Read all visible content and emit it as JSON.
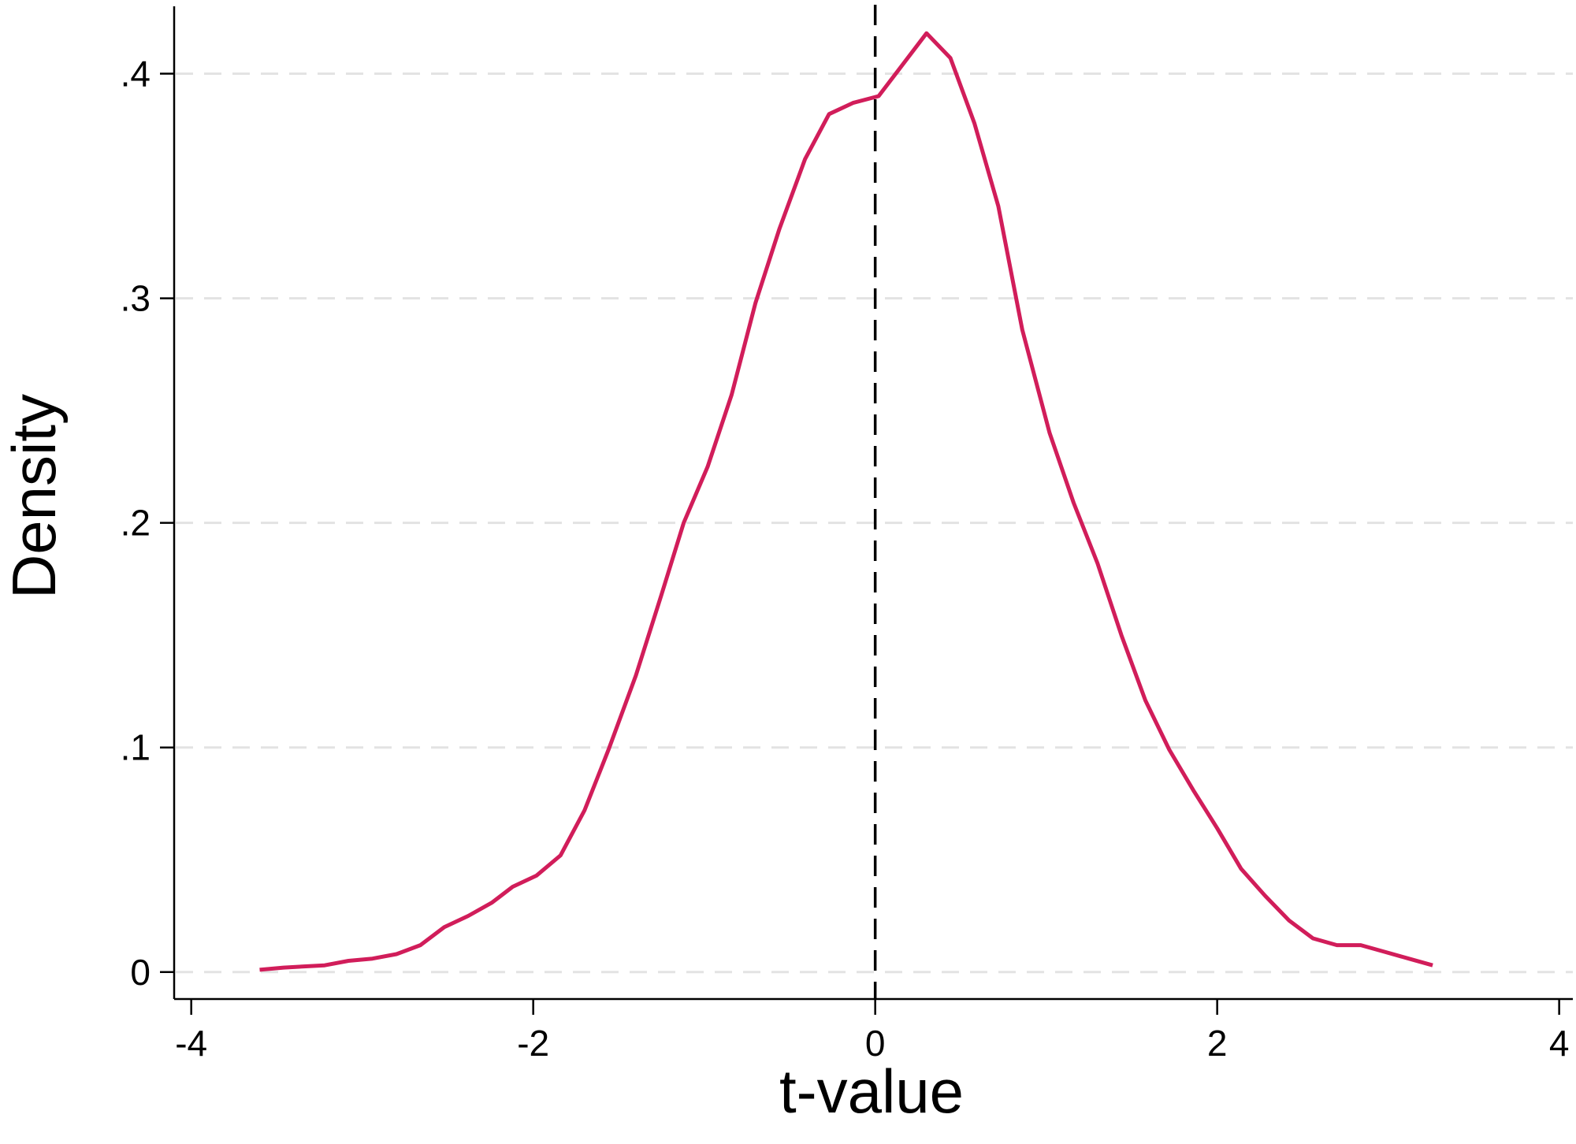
{
  "chart_data": {
    "type": "line",
    "title": "",
    "xlabel": "t-value",
    "ylabel": "Density",
    "xlim": [
      -4.1,
      4.08
    ],
    "ylim": [
      -0.012,
      0.43
    ],
    "x_ticks": [
      -4,
      -2,
      0,
      2,
      4
    ],
    "x_tick_labels": [
      "-4",
      "-2",
      "0",
      "2",
      "4"
    ],
    "y_ticks": [
      0,
      0.1,
      0.2,
      0.3,
      0.4
    ],
    "y_tick_labels": [
      "0",
      ".1",
      ".2",
      ".3",
      ".4"
    ],
    "grid": "horizontal-dashed",
    "legend": "none",
    "reference_line": {
      "axis": "x",
      "value": 0,
      "style": "dashed",
      "color": "#000000"
    },
    "series": [
      {
        "color": "#d11d5a",
        "x": [
          -3.6,
          -3.46,
          -3.22,
          -3.08,
          -2.94,
          -2.8,
          -2.66,
          -2.52,
          -2.38,
          -2.24,
          -2.12,
          -1.98,
          -1.84,
          -1.7,
          -1.56,
          -1.4,
          -1.25,
          -1.12,
          -0.98,
          -0.84,
          -0.7,
          -0.56,
          -0.41,
          -0.27,
          -0.13,
          0.02,
          0.16,
          0.3,
          0.44,
          0.58,
          0.72,
          0.86,
          1.02,
          1.16,
          1.3,
          1.44,
          1.58,
          1.72,
          1.86,
          2.0,
          2.14,
          2.28,
          2.42,
          2.56,
          2.7,
          2.84,
          2.98,
          3.12,
          3.26
        ],
        "y": [
          0.001,
          0.002,
          0.003,
          0.005,
          0.006,
          0.008,
          0.012,
          0.02,
          0.025,
          0.031,
          0.038,
          0.043,
          0.052,
          0.072,
          0.099,
          0.132,
          0.168,
          0.2,
          0.225,
          0.257,
          0.298,
          0.331,
          0.362,
          0.382,
          0.387,
          0.39,
          0.404,
          0.418,
          0.407,
          0.378,
          0.341,
          0.286,
          0.24,
          0.209,
          0.182,
          0.15,
          0.121,
          0.099,
          0.081,
          0.064,
          0.046,
          0.034,
          0.023,
          0.015,
          0.012,
          0.012,
          0.009,
          0.006,
          0.003
        ]
      }
    ]
  }
}
